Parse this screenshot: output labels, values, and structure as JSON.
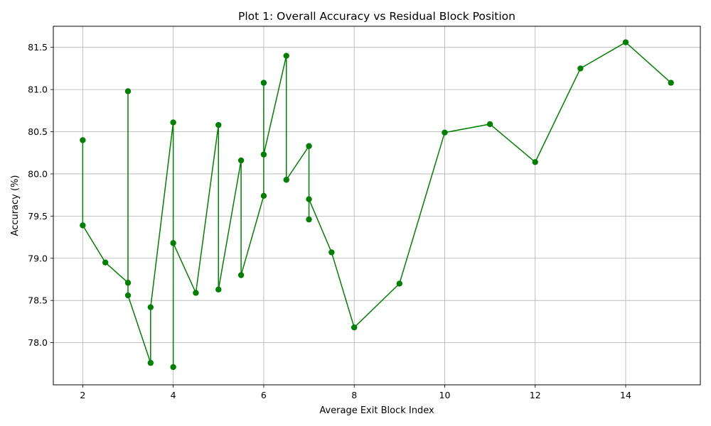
{
  "chart_data": {
    "type": "line",
    "title": "Plot 1: Overall Accuracy vs Residual Block Position",
    "xlabel": "Average Exit Block Index",
    "ylabel": "Accuracy (%)",
    "xlim": [
      1.35,
      15.65
    ],
    "ylim": [
      77.5,
      81.75
    ],
    "grid": true,
    "legend": "none",
    "xticks": [
      2,
      4,
      6,
      8,
      10,
      12,
      14
    ],
    "xtick_labels": [
      "2",
      "4",
      "6",
      "8",
      "10",
      "12",
      "14"
    ],
    "yticks": [
      78.0,
      78.5,
      79.0,
      79.5,
      80.0,
      80.5,
      81.0,
      81.5
    ],
    "ytick_labels": [
      "78.0",
      "78.5",
      "79.0",
      "79.5",
      "80.0",
      "80.5",
      "81.0",
      "81.5"
    ],
    "series": [
      {
        "name": "Accuracy",
        "color": "#008000",
        "x": [
          2,
          2,
          2.5,
          3,
          3,
          3,
          3.5,
          3.5,
          4,
          4,
          4,
          4.5,
          5,
          5,
          5.5,
          5.5,
          6,
          6,
          6,
          6.5,
          6.5,
          7,
          7,
          7,
          7.5,
          8,
          9,
          10,
          11,
          12,
          13,
          14,
          15
        ],
        "y": [
          80.4,
          79.39,
          78.95,
          78.71,
          80.98,
          78.56,
          77.76,
          78.42,
          80.61,
          77.71,
          79.18,
          78.59,
          80.58,
          78.63,
          80.16,
          78.8,
          79.74,
          81.08,
          80.23,
          81.4,
          79.93,
          80.33,
          79.46,
          79.7,
          79.07,
          78.18,
          78.7,
          80.49,
          80.59,
          80.14,
          81.25,
          81.56,
          81.08
        ]
      }
    ]
  }
}
